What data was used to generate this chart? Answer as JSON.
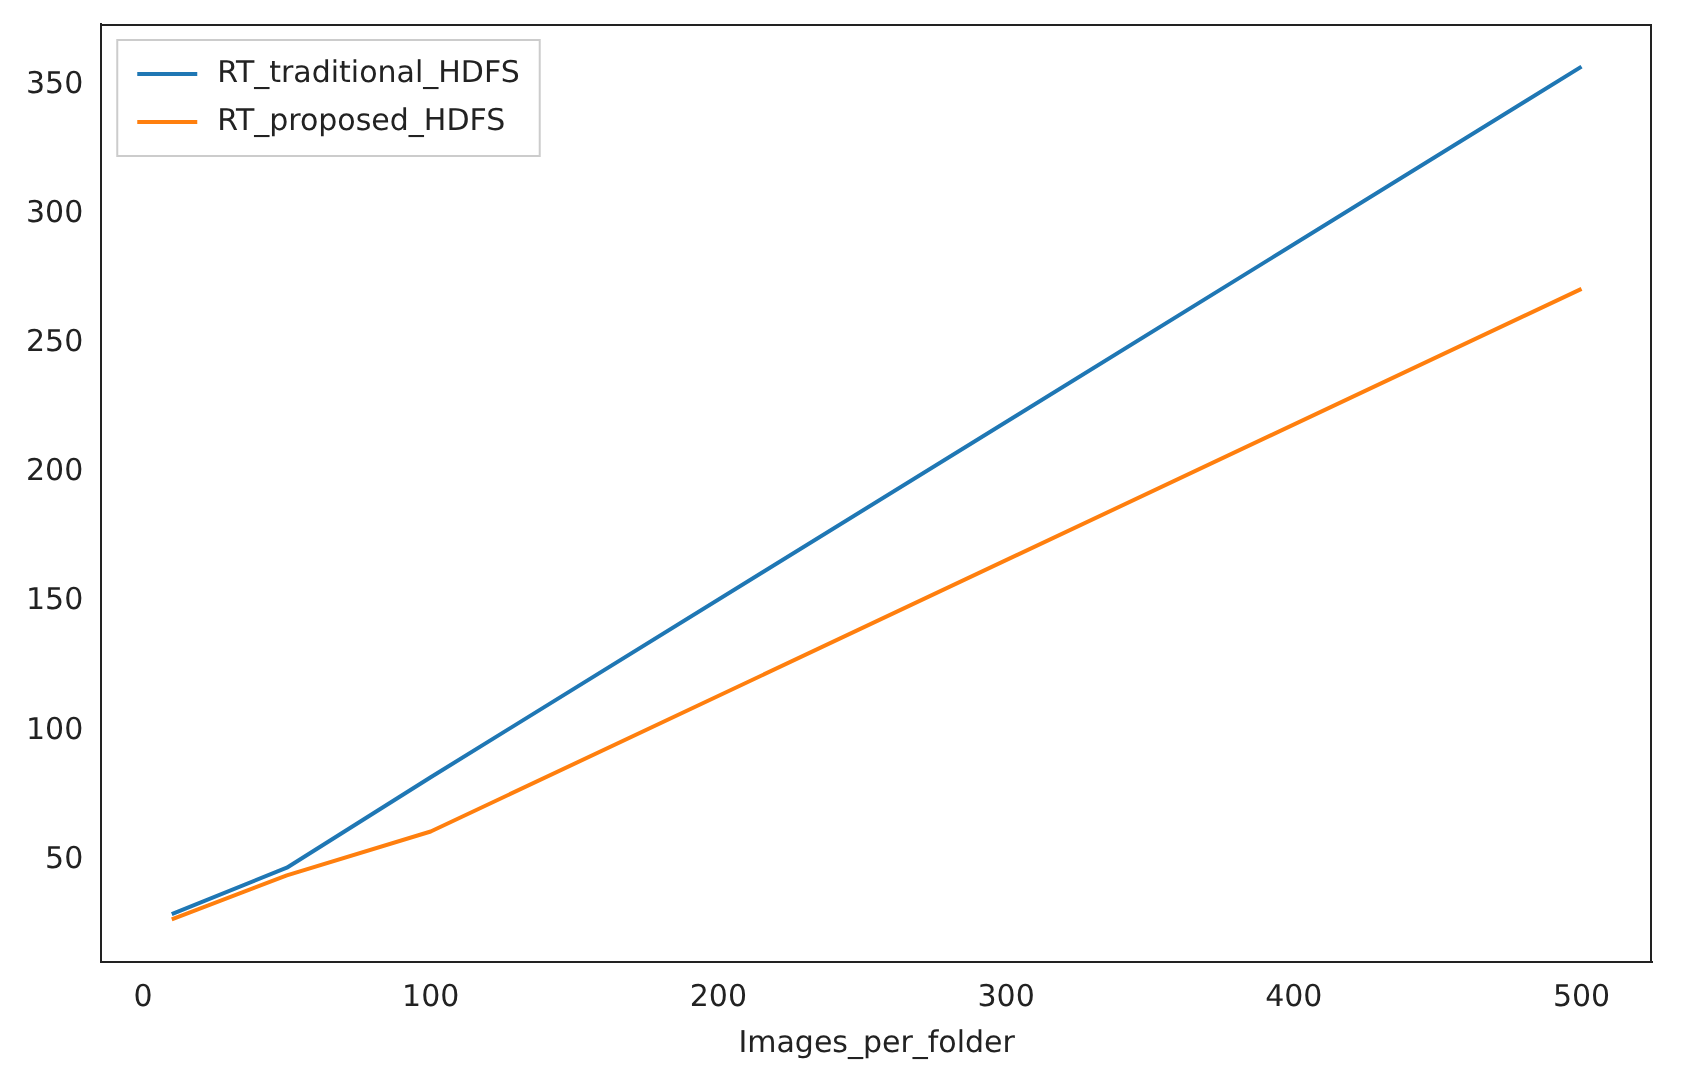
{
  "chart_data": {
    "type": "line",
    "xlabel": "Images_per_folder",
    "x": [
      10,
      50,
      100,
      500
    ],
    "series": [
      {
        "name": "RT_traditional_HDFS",
        "color": "#1f77b4",
        "values": [
          29,
          47,
          82,
          357
        ]
      },
      {
        "name": "RT_proposed_HDFS",
        "color": "#ff7f0e",
        "values": [
          27,
          44,
          61,
          271
        ]
      }
    ],
    "xlim": [
      -14.5,
      524.5
    ],
    "xticks": [
      0,
      100,
      200,
      300,
      400,
      500
    ],
    "ylim": [
      10.5,
      373.5
    ],
    "yticks": [
      50,
      100,
      150,
      200,
      250,
      300,
      350
    ],
    "grid": false,
    "legend": "top left",
    "marker": "none",
    "line_style": "solid"
  }
}
